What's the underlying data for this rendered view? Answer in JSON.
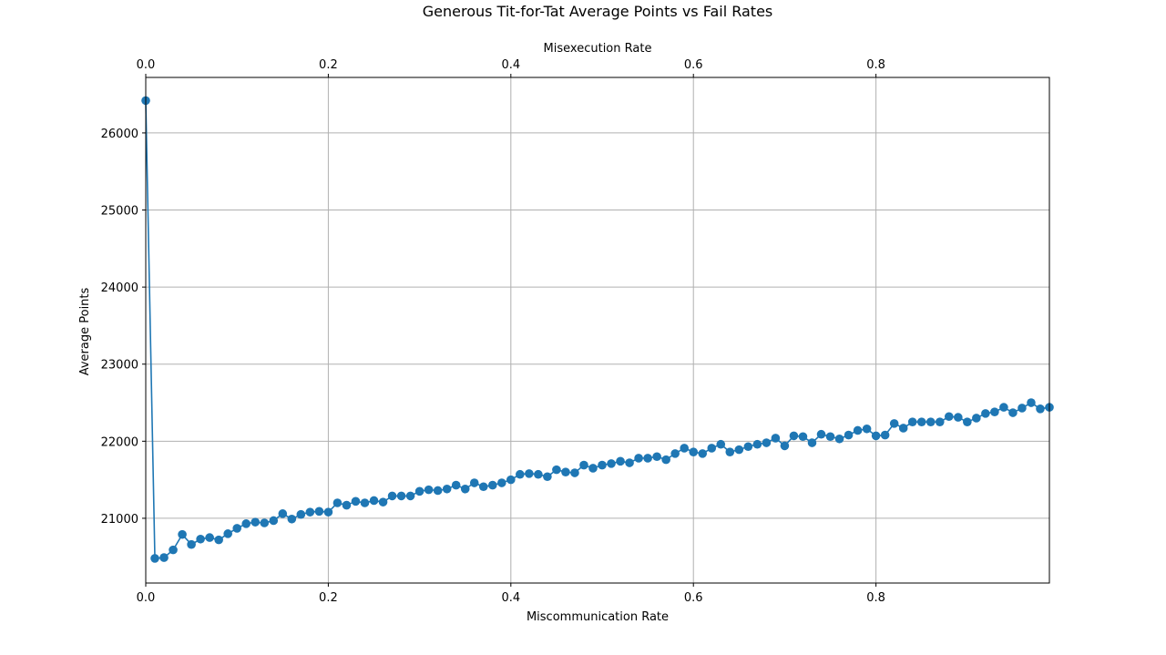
{
  "chart_data": {
    "type": "line",
    "title": "Generous Tit-for-Tat Average Points vs Fail Rates",
    "xlabel": "Miscommunication Rate",
    "x2label": "Misexecution Rate",
    "ylabel": "Average Points",
    "xlim": [
      0,
      0.99
    ],
    "ylim": [
      20160,
      26720
    ],
    "xticks": [
      0,
      0.2,
      0.4,
      0.6,
      0.8
    ],
    "xtick_labels": [
      "0.0",
      "0.2",
      "0.4",
      "0.6",
      "0.8"
    ],
    "yticks": [
      21000,
      22000,
      23000,
      24000,
      25000,
      26000
    ],
    "ytick_labels": [
      "21000",
      "22000",
      "23000",
      "24000",
      "25000",
      "26000"
    ],
    "grid": true,
    "line_color": "#1f77b4",
    "series": [
      {
        "x": [
          0.0,
          0.01,
          0.02,
          0.03,
          0.04,
          0.05,
          0.06,
          0.07,
          0.08,
          0.09,
          0.1,
          0.11,
          0.12,
          0.13,
          0.14,
          0.15,
          0.16,
          0.17,
          0.18,
          0.19,
          0.2,
          0.21,
          0.22,
          0.23,
          0.24,
          0.25,
          0.26,
          0.27,
          0.28,
          0.29,
          0.3,
          0.31,
          0.32,
          0.33,
          0.34,
          0.35,
          0.36,
          0.37,
          0.38,
          0.39,
          0.4,
          0.41,
          0.42,
          0.43,
          0.44,
          0.45,
          0.46,
          0.47,
          0.48,
          0.49,
          0.5,
          0.51,
          0.52,
          0.53,
          0.54,
          0.55,
          0.56,
          0.57,
          0.58,
          0.59,
          0.6,
          0.61,
          0.62,
          0.63,
          0.64,
          0.65,
          0.66,
          0.67,
          0.68,
          0.69,
          0.7,
          0.71,
          0.72,
          0.73,
          0.74,
          0.75,
          0.76,
          0.77,
          0.78,
          0.79,
          0.8,
          0.81,
          0.82,
          0.83,
          0.84,
          0.85,
          0.86,
          0.87,
          0.88,
          0.89,
          0.9,
          0.91,
          0.92,
          0.93,
          0.94,
          0.95,
          0.96,
          0.97,
          0.98,
          0.99
        ],
        "y": [
          26420,
          20480,
          20490,
          20590,
          20790,
          20660,
          20730,
          20750,
          20720,
          20800,
          20870,
          20930,
          20950,
          20940,
          20970,
          21060,
          20990,
          21050,
          21080,
          21090,
          21080,
          21200,
          21170,
          21220,
          21200,
          21230,
          21210,
          21290,
          21290,
          21290,
          21350,
          21370,
          21360,
          21380,
          21430,
          21380,
          21460,
          21410,
          21430,
          21460,
          21500,
          21570,
          21580,
          21570,
          21540,
          21630,
          21600,
          21590,
          21690,
          21650,
          21690,
          21710,
          21740,
          21720,
          21780,
          21780,
          21800,
          21760,
          21840,
          21910,
          21860,
          21840,
          21910,
          21960,
          21860,
          21890,
          21930,
          21960,
          21980,
          22040,
          21940,
          22070,
          22060,
          21980,
          22090,
          22060,
          22030,
          22080,
          22140,
          22160,
          22070,
          22080,
          22230,
          22170,
          22250,
          22250,
          22250,
          22250,
          22320,
          22310,
          22250,
          22300,
          22360,
          22380,
          22440,
          22370,
          22430,
          22500,
          22420,
          22440
        ]
      }
    ]
  }
}
